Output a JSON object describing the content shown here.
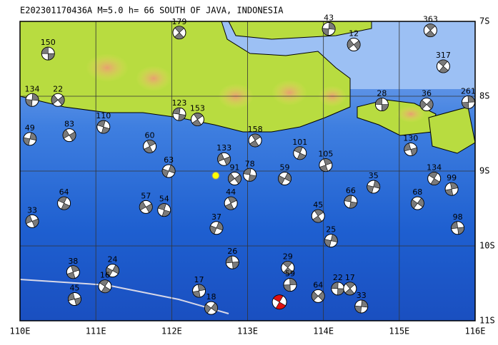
{
  "title": "E202301170436A M=5.0 h= 66 SOUTH OF JAVA, INDONESIA",
  "xlim": [
    110,
    116
  ],
  "ylim": [
    -11,
    -7
  ],
  "xticks": [
    {
      "value": 110,
      "label": "110E"
    },
    {
      "value": 111,
      "label": "111E"
    },
    {
      "value": 112,
      "label": "112E"
    },
    {
      "value": 113,
      "label": "113E"
    },
    {
      "value": 114,
      "label": "114E"
    },
    {
      "value": 115,
      "label": "115E"
    },
    {
      "value": 116,
      "label": "116E"
    }
  ],
  "yticks": [
    {
      "value": -7,
      "label": "7S"
    },
    {
      "value": -8,
      "label": "8S"
    },
    {
      "value": -9,
      "label": "9S"
    },
    {
      "value": -10,
      "label": "10S"
    },
    {
      "value": -11,
      "label": "11S"
    }
  ],
  "events": [
    {
      "label": "150",
      "lon": 110.37,
      "lat": -7.43
    },
    {
      "label": "179",
      "lon": 112.1,
      "lat": -7.15
    },
    {
      "label": "134",
      "lon": 110.16,
      "lat": -8.05
    },
    {
      "label": "22",
      "lon": 110.5,
      "lat": -8.05
    },
    {
      "label": "123",
      "lon": 112.1,
      "lat": -8.24
    },
    {
      "label": "153",
      "lon": 112.34,
      "lat": -8.31
    },
    {
      "label": "49",
      "lon": 110.13,
      "lat": -8.57
    },
    {
      "label": "83",
      "lon": 110.65,
      "lat": -8.52
    },
    {
      "label": "110",
      "lon": 111.1,
      "lat": -8.41
    },
    {
      "label": "60",
      "lon": 111.71,
      "lat": -8.67
    },
    {
      "label": "63",
      "lon": 111.96,
      "lat": -9.0
    },
    {
      "label": "133",
      "lon": 112.69,
      "lat": -8.84
    },
    {
      "label": "101",
      "lon": 113.69,
      "lat": -8.76
    },
    {
      "label": "105",
      "lon": 114.03,
      "lat": -8.92
    },
    {
      "label": "59",
      "lon": 113.49,
      "lat": -9.1
    },
    {
      "label": "130",
      "lon": 115.15,
      "lat": -8.71
    },
    {
      "label": "134",
      "lon": 115.46,
      "lat": -9.1
    },
    {
      "label": "99",
      "lon": 115.69,
      "lat": -9.24
    },
    {
      "label": "68",
      "lon": 115.24,
      "lat": -9.43
    },
    {
      "label": "98",
      "lon": 115.77,
      "lat": -9.76
    },
    {
      "label": "317",
      "lon": 115.58,
      "lat": -7.6
    },
    {
      "label": "261",
      "lon": 115.91,
      "lat": -8.08
    },
    {
      "label": "36",
      "lon": 115.36,
      "lat": -8.11
    },
    {
      "label": "28",
      "lon": 114.77,
      "lat": -8.11
    },
    {
      "label": "363",
      "lon": 115.41,
      "lat": -7.12
    },
    {
      "label": "43",
      "lon": 114.07,
      "lat": -7.1
    },
    {
      "label": "12",
      "lon": 114.4,
      "lat": -7.31
    },
    {
      "label": "66",
      "lon": 114.36,
      "lat": -9.41
    },
    {
      "label": "45",
      "lon": 113.93,
      "lat": -9.6
    },
    {
      "label": "25",
      "lon": 114.1,
      "lat": -9.93
    },
    {
      "label": "57",
      "lon": 111.66,
      "lat": -9.48
    },
    {
      "label": "54",
      "lon": 111.9,
      "lat": -9.52
    },
    {
      "label": "44",
      "lon": 112.78,
      "lat": -9.43
    },
    {
      "label": "37",
      "lon": 112.59,
      "lat": -9.76
    },
    {
      "label": "33",
      "lon": 110.16,
      "lat": -9.67
    },
    {
      "label": "64",
      "lon": 110.58,
      "lat": -9.43
    },
    {
      "label": "38",
      "lon": 110.7,
      "lat": -10.35
    },
    {
      "label": "24",
      "lon": 111.22,
      "lat": -10.33
    },
    {
      "label": "45",
      "lon": 110.72,
      "lat": -10.71
    },
    {
      "label": "16",
      "lon": 111.12,
      "lat": -10.54
    },
    {
      "label": "17",
      "lon": 112.36,
      "lat": -10.6
    },
    {
      "label": "18",
      "lon": 112.52,
      "lat": -10.83
    },
    {
      "label": "26",
      "lon": 112.8,
      "lat": -10.22
    },
    {
      "label": "29",
      "lon": 113.53,
      "lat": -10.29
    },
    {
      "label": "59",
      "lon": 113.56,
      "lat": -10.52
    },
    {
      "label": "64",
      "lon": 113.93,
      "lat": -10.67
    },
    {
      "label": "22",
      "lon": 114.19,
      "lat": -10.57
    },
    {
      "label": "17",
      "lon": 114.35,
      "lat": -10.57
    },
    {
      "label": "33",
      "lon": 114.5,
      "lat": -10.81
    },
    {
      "label": "91",
      "lon": 112.83,
      "lat": -9.1
    },
    {
      "label": "78",
      "lon": 113.03,
      "lat": -9.05
    },
    {
      "label": "158",
      "lon": 113.1,
      "lat": -8.59
    },
    {
      "label": "35",
      "lon": 114.66,
      "lat": -9.21
    }
  ],
  "main_event": {
    "lon": 113.42,
    "lat": -10.75
  },
  "station": {
    "lon": 112.58,
    "lat": -9.06
  }
}
